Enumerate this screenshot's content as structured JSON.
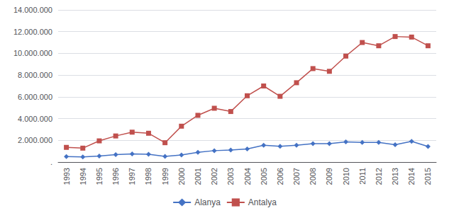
{
  "chart_data": {
    "type": "line",
    "categories": [
      "1993",
      "1994",
      "1995",
      "1996",
      "1997",
      "1998",
      "1999",
      "2000",
      "2001",
      "2002",
      "2003",
      "2004",
      "2005",
      "2006",
      "2007",
      "2008",
      "2009",
      "2010",
      "2011",
      "2012",
      "2013",
      "2014",
      "2015"
    ],
    "series": [
      {
        "name": "Alanya",
        "color": "#4472C4",
        "marker": "diamond",
        "values": [
          500000,
          480000,
          560000,
          680000,
          750000,
          720000,
          520000,
          650000,
          900000,
          1050000,
          1100000,
          1200000,
          1550000,
          1450000,
          1550000,
          1700000,
          1700000,
          1850000,
          1800000,
          1800000,
          1600000,
          1900000,
          1430000
        ]
      },
      {
        "name": "Antalya",
        "color": "#C0504D",
        "marker": "square",
        "values": [
          1350000,
          1280000,
          1950000,
          2400000,
          2750000,
          2650000,
          1780000,
          3300000,
          4300000,
          4950000,
          4650000,
          6100000,
          7000000,
          6050000,
          7300000,
          8600000,
          8350000,
          9750000,
          11000000,
          10700000,
          11550000,
          11500000,
          10700000
        ]
      }
    ],
    "ylim": [
      0,
      14000000
    ],
    "yticks": [
      {
        "value": 0,
        "label": "."
      },
      {
        "value": 2000000,
        "label": "2.000.000"
      },
      {
        "value": 4000000,
        "label": "4.000.000"
      },
      {
        "value": 6000000,
        "label": "6.000.000"
      },
      {
        "value": 8000000,
        "label": "8.000.000"
      },
      {
        "value": 10000000,
        "label": "10.000.000"
      },
      {
        "value": 12000000,
        "label": "12.000.000"
      },
      {
        "value": 14000000,
        "label": "14.000.000"
      }
    ],
    "grid": true,
    "legend": "bottom"
  }
}
